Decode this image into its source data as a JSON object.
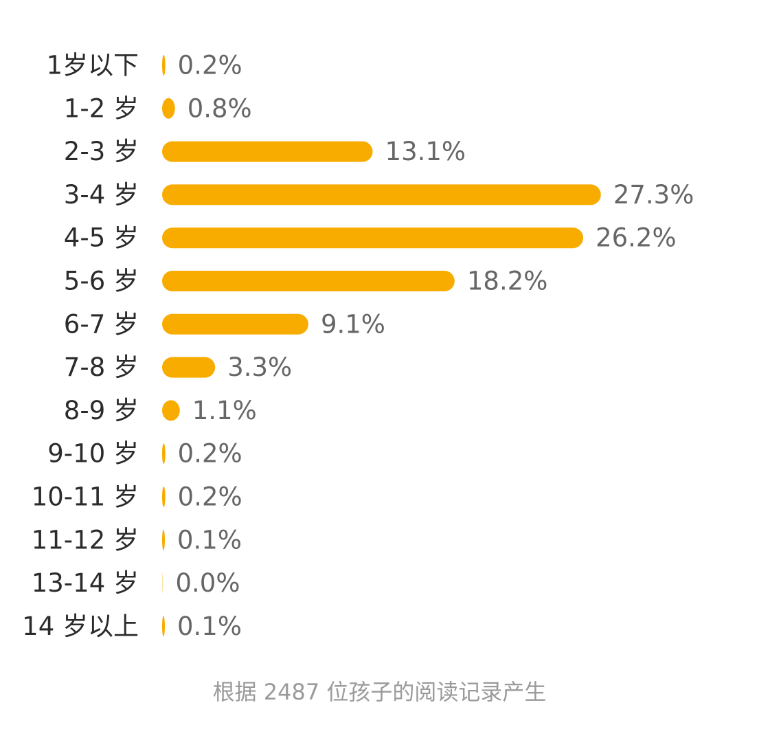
{
  "colors": {
    "bar": "#F8AC00",
    "category_text": "#2b2b2b",
    "value_text": "#666666",
    "footnote_text": "#9a9a9a",
    "background": "#ffffff"
  },
  "footnote": "根据 2487 位孩子的阅读记录产生",
  "chart_data": {
    "type": "bar",
    "orientation": "horizontal",
    "categories": [
      "1岁以下",
      "1-2 岁",
      "2-3 岁",
      "3-4 岁",
      "4-5 岁",
      "5-6 岁",
      "6-7 岁",
      "7-8 岁",
      "8-9 岁",
      "9-10 岁",
      "10-11 岁",
      "11-12 岁",
      "13-14 岁",
      "14 岁以上"
    ],
    "values": [
      0.2,
      0.8,
      13.1,
      27.3,
      26.2,
      18.2,
      9.1,
      3.3,
      1.1,
      0.2,
      0.2,
      0.1,
      0.0,
      0.1
    ],
    "value_labels": [
      "0.2%",
      "0.8%",
      "13.1%",
      "27.3%",
      "26.2%",
      "18.2%",
      "9.1%",
      "3.3%",
      "1.1%",
      "0.2%",
      "0.2%",
      "0.1%",
      "0.0%",
      "0.1%"
    ],
    "unit": "%",
    "grid": false,
    "legend": "none"
  }
}
